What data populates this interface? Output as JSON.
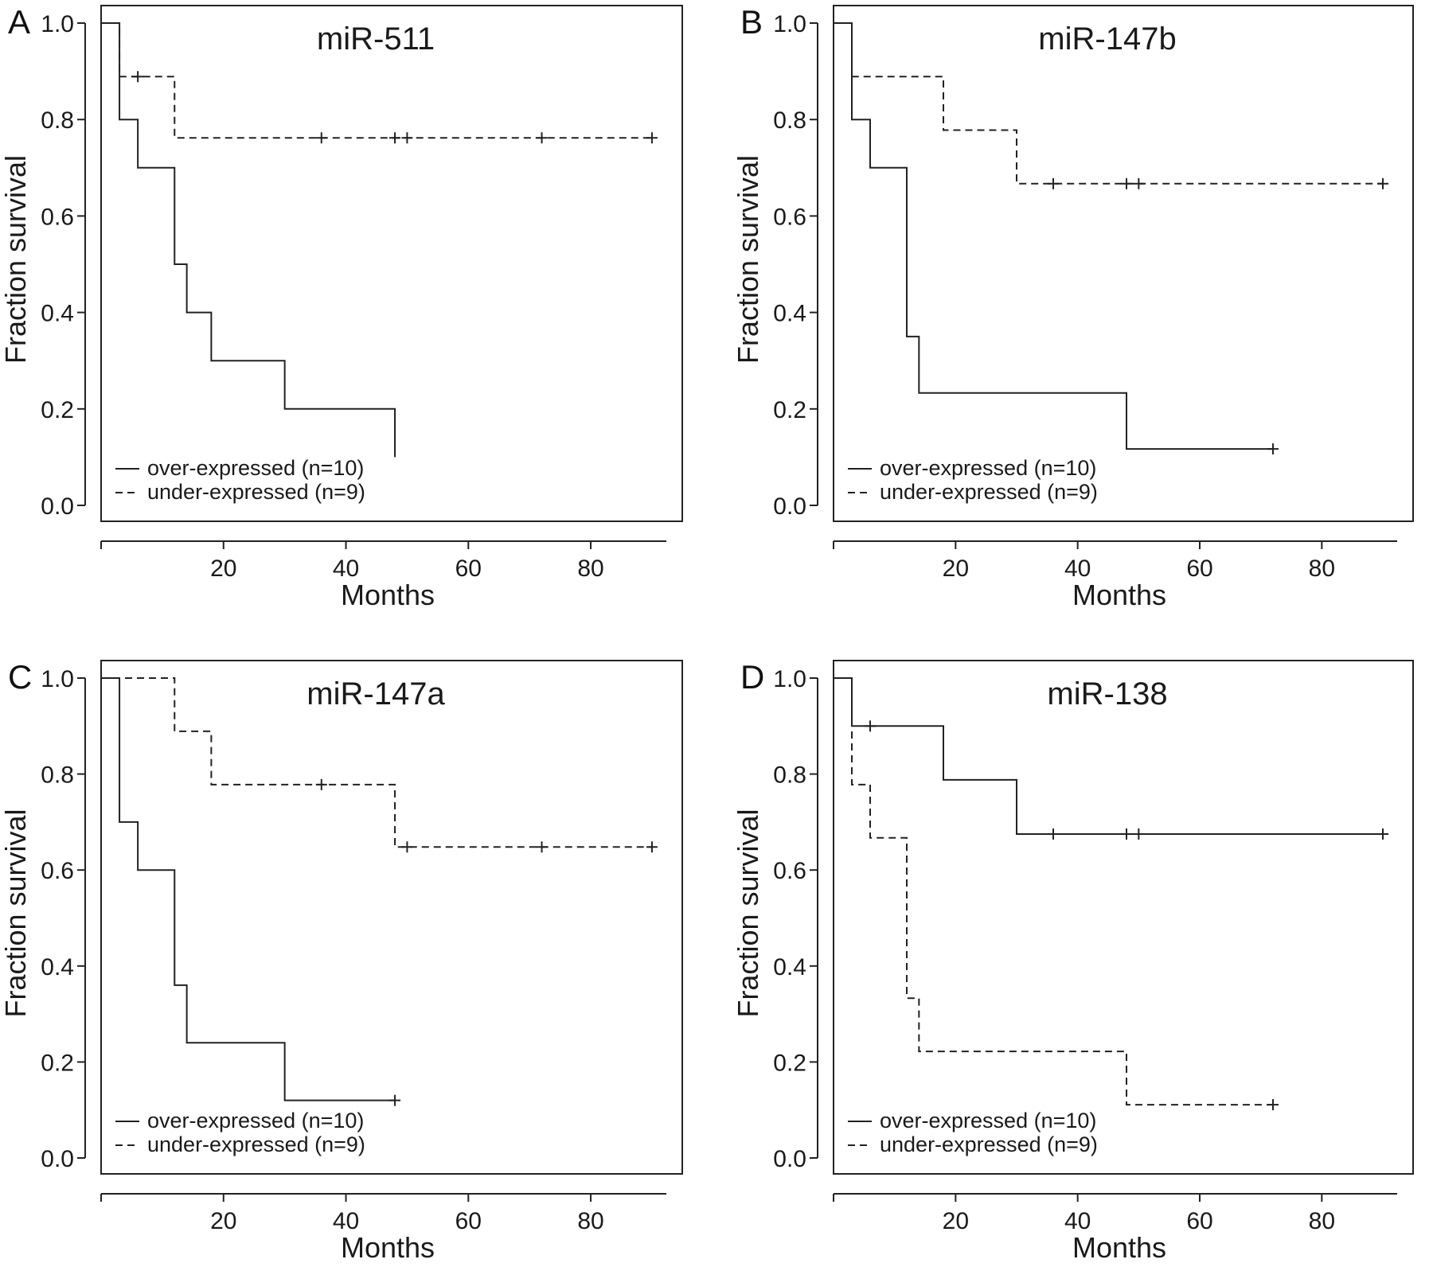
{
  "chart_data": [
    {
      "type": "line",
      "panel": "A",
      "title": "miR-511",
      "xlabel": "Months",
      "ylabel": "Fraction survival",
      "xlim": [
        0,
        93
      ],
      "ylim": [
        0,
        1.0
      ],
      "xticks": [
        20,
        40,
        60,
        80
      ],
      "yticks": [
        "0.0",
        "0.2",
        "0.4",
        "0.6",
        "0.8",
        "1.0"
      ],
      "legend_position": "bottom-left",
      "series": [
        {
          "name": "over-expressed (n=10)",
          "style": "solid",
          "points": [
            [
              0,
              1.0
            ],
            [
              3,
              0.8
            ],
            [
              6,
              0.7
            ],
            [
              12,
              0.5
            ],
            [
              14,
              0.4
            ],
            [
              18,
              0.3
            ],
            [
              30,
              0.2
            ],
            [
              48,
              0.1
            ]
          ],
          "censored": []
        },
        {
          "name": "under-expressed (n=9)",
          "style": "dashed",
          "points": [
            [
              0,
              1.0
            ],
            [
              3,
              0.889
            ],
            [
              12,
              0.762
            ],
            [
              90,
              0.762
            ]
          ],
          "censored": [
            [
              6,
              0.889
            ],
            [
              36,
              0.762
            ],
            [
              48,
              0.762
            ],
            [
              50,
              0.762
            ],
            [
              72,
              0.762
            ],
            [
              90,
              0.762
            ]
          ]
        }
      ]
    },
    {
      "type": "line",
      "panel": "B",
      "title": "miR-147b",
      "xlabel": "Months",
      "ylabel": "Fraction survival",
      "xlim": [
        0,
        93
      ],
      "ylim": [
        0,
        1.0
      ],
      "xticks": [
        20,
        40,
        60,
        80
      ],
      "yticks": [
        "0.0",
        "0.2",
        "0.4",
        "0.6",
        "0.8",
        "1.0"
      ],
      "legend_position": "bottom-left",
      "series": [
        {
          "name": "over-expressed (n=10)",
          "style": "solid",
          "points": [
            [
              0,
              1.0
            ],
            [
              3,
              0.8
            ],
            [
              6,
              0.7
            ],
            [
              12,
              0.35
            ],
            [
              14,
              0.233
            ],
            [
              48,
              0.117
            ],
            [
              72,
              0.117
            ]
          ],
          "censored": [
            [
              72,
              0.117
            ]
          ]
        },
        {
          "name": "under-expressed (n=9)",
          "style": "dashed",
          "points": [
            [
              0,
              1.0
            ],
            [
              3,
              0.889
            ],
            [
              18,
              0.778
            ],
            [
              30,
              0.667
            ],
            [
              90,
              0.667
            ]
          ],
          "censored": [
            [
              36,
              0.667
            ],
            [
              48,
              0.667
            ],
            [
              50,
              0.667
            ],
            [
              90,
              0.667
            ]
          ]
        }
      ]
    },
    {
      "type": "line",
      "panel": "C",
      "title": "miR-147a",
      "xlabel": "Months",
      "ylabel": "Fraction survival",
      "xlim": [
        0,
        93
      ],
      "ylim": [
        0,
        1.0
      ],
      "xticks": [
        20,
        40,
        60,
        80
      ],
      "yticks": [
        "0.0",
        "0.2",
        "0.4",
        "0.6",
        "0.8",
        "1.0"
      ],
      "legend_position": "bottom-left",
      "series": [
        {
          "name": "over-expressed (n=10)",
          "style": "solid",
          "points": [
            [
              0,
              1.0
            ],
            [
              3,
              0.7
            ],
            [
              6,
              0.6
            ],
            [
              12,
              0.36
            ],
            [
              14,
              0.24
            ],
            [
              30,
              0.12
            ],
            [
              48,
              0.12
            ]
          ],
          "censored": [
            [
              48,
              0.12
            ]
          ]
        },
        {
          "name": "under-expressed (n=9)",
          "style": "dashed",
          "points": [
            [
              0,
              1.0
            ],
            [
              12,
              0.889
            ],
            [
              18,
              0.778
            ],
            [
              48,
              0.648
            ],
            [
              90,
              0.648
            ]
          ],
          "censored": [
            [
              36,
              0.778
            ],
            [
              50,
              0.648
            ],
            [
              72,
              0.648
            ],
            [
              90,
              0.648
            ]
          ]
        }
      ]
    },
    {
      "type": "line",
      "panel": "D",
      "title": "miR-138",
      "xlabel": "Months",
      "ylabel": "Fraction survival",
      "xlim": [
        0,
        93
      ],
      "ylim": [
        0,
        1.0
      ],
      "xticks": [
        20,
        40,
        60,
        80
      ],
      "yticks": [
        "0.0",
        "0.2",
        "0.4",
        "0.6",
        "0.8",
        "1.0"
      ],
      "legend_position": "bottom-left",
      "series": [
        {
          "name": "over-expressed (n=10)",
          "style": "solid",
          "points": [
            [
              0,
              1.0
            ],
            [
              3,
              0.9
            ],
            [
              18,
              0.788
            ],
            [
              30,
              0.675
            ],
            [
              90,
              0.675
            ]
          ],
          "censored": [
            [
              6,
              0.9
            ],
            [
              36,
              0.675
            ],
            [
              48,
              0.675
            ],
            [
              50,
              0.675
            ],
            [
              90,
              0.675
            ]
          ]
        },
        {
          "name": "under-expressed (n=9)",
          "style": "dashed",
          "points": [
            [
              0,
              1.0
            ],
            [
              3,
              0.778
            ],
            [
              6,
              0.667
            ],
            [
              12,
              0.333
            ],
            [
              14,
              0.222
            ],
            [
              48,
              0.111
            ],
            [
              72,
              0.111
            ]
          ],
          "censored": [
            [
              72,
              0.111
            ]
          ]
        }
      ]
    }
  ]
}
